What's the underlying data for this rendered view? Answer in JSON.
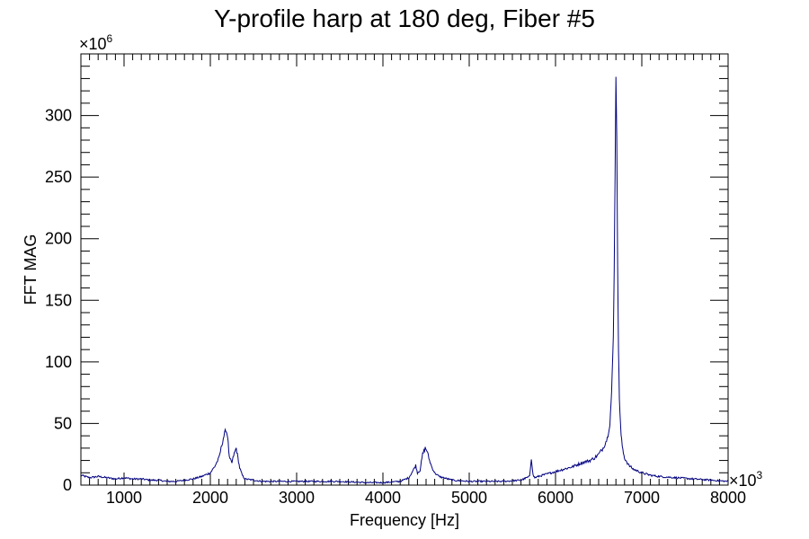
{
  "chart_data": {
    "type": "line",
    "title": "Y-profile harp at 180 deg, Fiber #5",
    "xlabel": "Frequency [Hz]",
    "ylabel": "FFT MAG",
    "x_multiplier": {
      "base": "×10",
      "exponent": "3"
    },
    "y_multiplier": {
      "base": "×10",
      "exponent": "6"
    },
    "xlim": [
      500,
      8000
    ],
    "ylim": [
      0,
      350
    ],
    "x_ticks": [
      1000,
      2000,
      3000,
      4000,
      5000,
      6000,
      7000,
      8000
    ],
    "y_ticks": [
      0,
      50,
      100,
      150,
      200,
      250,
      300
    ],
    "grid": false,
    "legend": "none",
    "line_color": "#000080",
    "series": [
      {
        "x": [
          500,
          600,
          700,
          800,
          900,
          1000,
          1100,
          1200,
          1300,
          1400,
          1500,
          1600,
          1700,
          1800,
          1900,
          2000,
          2050,
          2100,
          2150,
          2180,
          2200,
          2220,
          2250,
          2270,
          2300,
          2320,
          2340,
          2370,
          2400,
          2500,
          2600,
          2800,
          3000,
          3200,
          3500,
          3800,
          4000,
          4200,
          4300,
          4350,
          4380,
          4400,
          4430,
          4460,
          4490,
          4510,
          4540,
          4570,
          4600,
          4650,
          4700,
          4800,
          5000,
          5200,
          5400,
          5600,
          5700,
          5720,
          5740,
          5760,
          5800,
          5900,
          6000,
          6100,
          6200,
          6300,
          6400,
          6450,
          6500,
          6550,
          6600,
          6630,
          6650,
          6670,
          6680,
          6690,
          6700,
          6710,
          6720,
          6730,
          6740,
          6760,
          6780,
          6800,
          6850,
          6900,
          7000,
          7100,
          7200,
          7400,
          7600,
          7800,
          8000
        ],
        "y": [
          8,
          6,
          7,
          6,
          5,
          6,
          5,
          5,
          4,
          4,
          3,
          3,
          4,
          5,
          7,
          10,
          15,
          22,
          38,
          45,
          40,
          22,
          18,
          24,
          30,
          22,
          14,
          8,
          5,
          4,
          3,
          3,
          3,
          3,
          3,
          2,
          2,
          3,
          6,
          12,
          16,
          10,
          12,
          25,
          30,
          28,
          20,
          14,
          10,
          7,
          6,
          4,
          3,
          3,
          3,
          4,
          7,
          22,
          8,
          6,
          7,
          9,
          11,
          13,
          15,
          18,
          20,
          22,
          25,
          30,
          38,
          50,
          75,
          120,
          175,
          250,
          333,
          280,
          180,
          110,
          70,
          40,
          28,
          22,
          16,
          13,
          10,
          8,
          7,
          6,
          5,
          4,
          3
        ]
      }
    ]
  }
}
